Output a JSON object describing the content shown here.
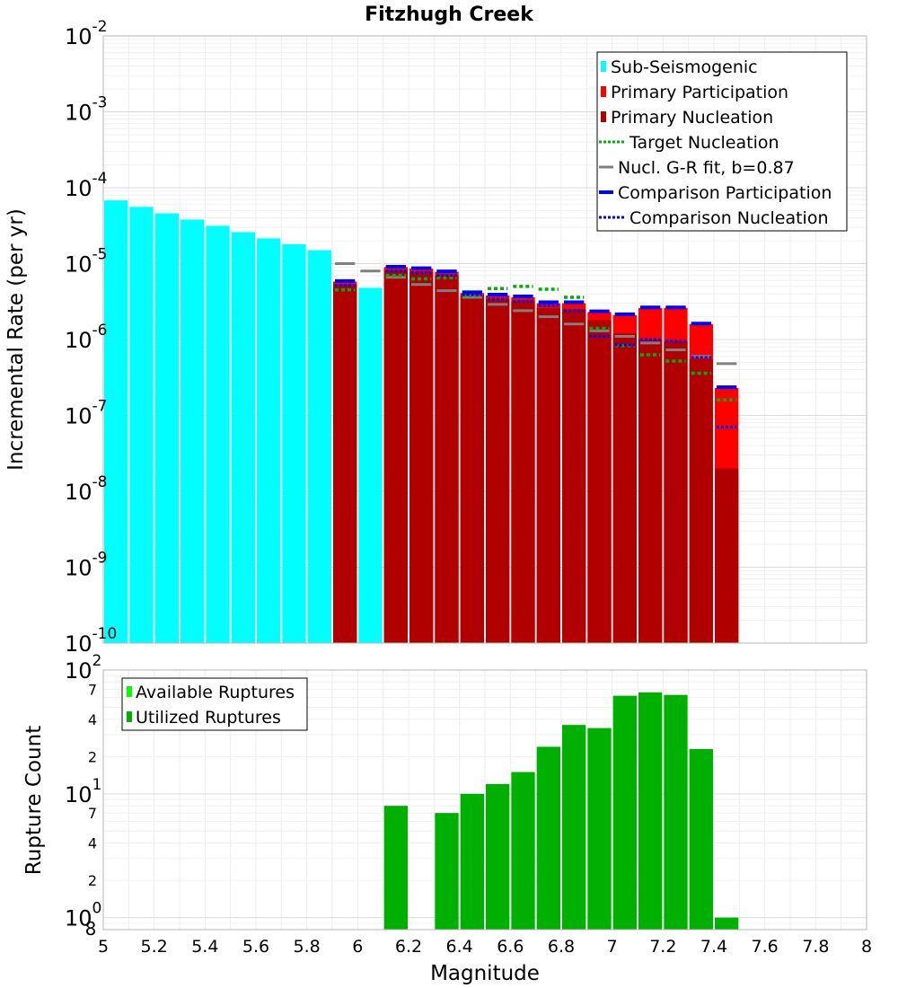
{
  "chart_data": [
    {
      "type": "bar",
      "title": "Fitzhugh Creek",
      "xlabel": "Magnitude",
      "ylabel": "Incremental Rate (per yr)",
      "yscale": "log",
      "xlim": [
        5,
        8
      ],
      "ylim": [
        1e-10,
        0.01
      ],
      "bin_width": 0.1,
      "y_tick_labels": [
        {
          "base": "10",
          "exp": "-10"
        },
        {
          "base": "10",
          "exp": "-9"
        },
        {
          "base": "10",
          "exp": "-8"
        },
        {
          "base": "10",
          "exp": "-7"
        },
        {
          "base": "10",
          "exp": "-6"
        },
        {
          "base": "10",
          "exp": "-5"
        },
        {
          "base": "10",
          "exp": "-4"
        },
        {
          "base": "10",
          "exp": "-3"
        },
        {
          "base": "10",
          "exp": "-2"
        }
      ],
      "legend": {
        "position": "top-right",
        "items": [
          {
            "label": "Sub-Seismogenic",
            "style": "bar",
            "color": "#00ffff"
          },
          {
            "label": "Primary Participation",
            "style": "bar",
            "color": "#ff0000"
          },
          {
            "label": "Primary Nucleation",
            "style": "bar",
            "color": "#b00000"
          },
          {
            "label": "Target Nucleation",
            "style": "dotted",
            "color": "#00b000"
          },
          {
            "label": "Nucl. G-R fit, b=0.87",
            "style": "solid",
            "color": "#808080"
          },
          {
            "label": "Comparison Participation",
            "style": "solid-thick",
            "color": "#0000ff"
          },
          {
            "label": "Comparison Nucleation",
            "style": "dotted",
            "color": "#0000ff"
          }
        ]
      },
      "series": [
        {
          "name": "Sub-Seismogenic",
          "color": "#00ffff",
          "x": [
            5.05,
            5.15,
            5.25,
            5.35,
            5.45,
            5.55,
            5.65,
            5.75,
            5.85,
            6.05
          ],
          "values": [
            6.8e-05,
            5.6e-05,
            4.6e-05,
            3.8e-05,
            3.15e-05,
            2.6e-05,
            2.15e-05,
            1.8e-05,
            1.5e-05,
            4.8e-06
          ]
        },
        {
          "name": "Primary Participation",
          "color": "#ff0000",
          "x": [
            5.95,
            6.15,
            6.25,
            6.35,
            6.45,
            6.55,
            6.65,
            6.75,
            6.85,
            6.95,
            7.05,
            7.15,
            7.25,
            7.35,
            7.45
          ],
          "values": [
            5.8e-06,
            9e-06,
            8.6e-06,
            7.8e-06,
            4.1e-06,
            3.8e-06,
            3.6e-06,
            3e-06,
            3e-06,
            2.3e-06,
            2.1e-06,
            2.6e-06,
            2.6e-06,
            1.6e-06,
            2.3e-07
          ]
        },
        {
          "name": "Primary Nucleation",
          "color": "#b00000",
          "x": [
            5.95,
            6.15,
            6.25,
            6.35,
            6.45,
            6.55,
            6.65,
            6.75,
            6.85,
            6.95,
            7.05,
            7.15,
            7.25,
            7.35,
            7.45
          ],
          "values": [
            5.3e-06,
            8.2e-06,
            7.8e-06,
            7e-06,
            3.8e-06,
            3.4e-06,
            3.2e-06,
            2.6e-06,
            2.5e-06,
            1.8e-06,
            1.2e-06,
            1e-06,
            9.5e-07,
            5.5e-07,
            2e-08
          ]
        },
        {
          "name": "Target Nucleation",
          "color": "#00b000",
          "x": [
            5.95,
            6.15,
            6.25,
            6.35,
            6.45,
            6.55,
            6.65,
            6.75,
            6.85,
            6.95,
            7.05,
            7.15,
            7.25,
            7.35,
            7.45
          ],
          "values": [
            4.5e-06,
            7e-06,
            6.3e-06,
            6.5e-06,
            3.8e-06,
            4.7e-06,
            5e-06,
            4.6e-06,
            3.6e-06,
            1.4e-06,
            8.3e-07,
            6.3e-07,
            5.2e-07,
            3.6e-07,
            1.6e-07
          ]
        },
        {
          "name": "Nucl. G-R fit, b=0.87",
          "color": "#808080",
          "x": [
            5.95,
            6.05,
            6.15,
            6.25,
            6.35,
            6.45,
            6.55,
            6.65,
            6.75,
            6.85,
            6.95,
            7.05,
            7.15,
            7.25,
            7.35,
            7.45
          ],
          "values": [
            1e-05,
            8e-06,
            6.6e-06,
            5.3e-06,
            4.4e-06,
            3.6e-06,
            2.9e-06,
            2.4e-06,
            2e-06,
            1.6e-06,
            1.3e-06,
            1.1e-06,
            9e-07,
            7.3e-07,
            6e-07,
            4.8e-07
          ]
        },
        {
          "name": "Comparison Participation",
          "color": "#0000ff",
          "x": [
            5.95,
            6.15,
            6.25,
            6.35,
            6.45,
            6.55,
            6.65,
            6.75,
            6.85,
            6.95,
            7.05,
            7.15,
            7.25,
            7.35,
            7.45
          ],
          "values": [
            5.9e-06,
            9.1e-06,
            8.7e-06,
            7.9e-06,
            4.2e-06,
            3.9e-06,
            3.7e-06,
            3.1e-06,
            3.1e-06,
            2.35e-06,
            2.15e-06,
            2.65e-06,
            2.65e-06,
            1.62e-06,
            2.35e-07
          ]
        },
        {
          "name": "Comparison Nucleation",
          "color": "#0000ff",
          "x": [
            5.95,
            6.15,
            6.25,
            6.35,
            6.45,
            6.55,
            6.65,
            6.75,
            6.85,
            6.95,
            7.05,
            7.15,
            7.25,
            7.35,
            7.45
          ],
          "values": [
            5.2e-06,
            8e-06,
            7.6e-06,
            7e-06,
            3.9e-06,
            3.4e-06,
            3.2e-06,
            2.8e-06,
            2.4e-06,
            1.1e-06,
            8.5e-07,
            1e-06,
            9.5e-07,
            5.8e-07,
            7e-08
          ]
        }
      ]
    },
    {
      "type": "bar",
      "xlabel": "Magnitude",
      "ylabel": "Rupture Count",
      "yscale": "log",
      "xlim": [
        5,
        8
      ],
      "ylim": [
        0.8,
        100
      ],
      "x_ticks": [
        "5",
        "5.2",
        "5.4",
        "5.6",
        "5.8",
        "6",
        "6.2",
        "6.4",
        "6.6",
        "6.8",
        "7",
        "7.2",
        "7.4",
        "7.6",
        "7.8",
        "8"
      ],
      "y_tick_labels": [
        {
          "value": 1,
          "base": "10",
          "exp": "0",
          "major": true
        },
        {
          "value": 2,
          "label": "2"
        },
        {
          "value": 4,
          "label": "4"
        },
        {
          "value": 7,
          "label": "7"
        },
        {
          "value": 10,
          "base": "10",
          "exp": "1",
          "major": true
        },
        {
          "value": 20,
          "label": "2"
        },
        {
          "value": 40,
          "label": "4"
        },
        {
          "value": 70,
          "label": "7"
        },
        {
          "value": 100,
          "base": "10",
          "exp": "2",
          "major": true
        }
      ],
      "y_min_label": "8",
      "legend": {
        "position": "top-left",
        "items": [
          {
            "label": "Available Ruptures",
            "style": "bar",
            "color": "#00ff00"
          },
          {
            "label": "Utilized Ruptures",
            "style": "bar",
            "color": "#00b000"
          }
        ]
      },
      "series": [
        {
          "name": "Utilized Ruptures",
          "color": "#00b000",
          "x": [
            6.15,
            6.35,
            6.45,
            6.55,
            6.65,
            6.75,
            6.85,
            6.95,
            7.05,
            7.15,
            7.25,
            7.35,
            7.45
          ],
          "values": [
            8,
            7,
            10,
            12,
            15,
            24,
            36,
            34,
            62,
            66,
            63,
            23,
            1
          ]
        }
      ]
    }
  ]
}
